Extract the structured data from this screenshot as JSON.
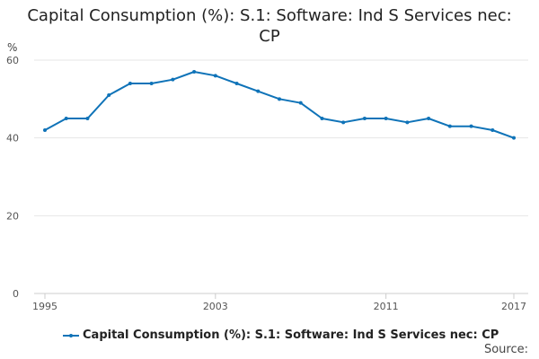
{
  "chart_data": {
    "type": "line",
    "title_lines": [
      "Capital Consumption (%): S.1: Software: Ind S Services nec:",
      "CP"
    ],
    "ylabel": "%",
    "ylim": [
      0,
      60
    ],
    "yticks": [
      0,
      20,
      40,
      60
    ],
    "xlim": [
      1995,
      2017
    ],
    "xticks": [
      "1995",
      "2003",
      "2011",
      "2017"
    ],
    "grid": true,
    "legend_position": "bottom",
    "series": [
      {
        "name": "Capital Consumption (%): S.1: Software: Ind S Services nec: CP",
        "color": "#0f73b8",
        "x": [
          1995,
          1996,
          1997,
          1998,
          1999,
          2000,
          2001,
          2002,
          2003,
          2004,
          2005,
          2006,
          2007,
          2008,
          2009,
          2010,
          2011,
          2012,
          2013,
          2014,
          2015,
          2016,
          2017
        ],
        "y": [
          42,
          45,
          45,
          51,
          54,
          54,
          55,
          57,
          56,
          54,
          52,
          50,
          49,
          45,
          44,
          45,
          45,
          44,
          45,
          43,
          43,
          42,
          40
        ]
      }
    ]
  },
  "source_label": "Source:"
}
